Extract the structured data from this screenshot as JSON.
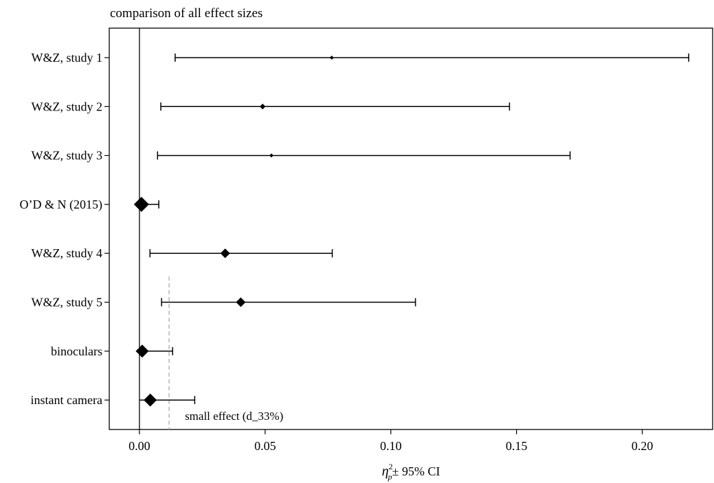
{
  "chart_data": {
    "type": "forest",
    "title": "comparison of all effect sizes",
    "xlabel": "± 95% CI",
    "xlabel_symbol": "η",
    "xlabel_sup": "2",
    "xlabel_sub": "p",
    "xlim": [
      -0.012,
      0.228
    ],
    "xticks": [
      0.0,
      0.05,
      0.1,
      0.15,
      0.2
    ],
    "xtick_labels": [
      "0.00",
      "0.05",
      "0.10",
      "0.15",
      "0.20"
    ],
    "zero_line": 0.0,
    "reference_line": {
      "value": 0.0118,
      "label": "small effect (d_33%)",
      "style": "dashed",
      "color": "#aaaaaa"
    },
    "series": [
      {
        "label": "W&Z, study 1",
        "estimate": 0.0765,
        "ci_low": 0.0142,
        "ci_high": 0.2185,
        "weight": 1
      },
      {
        "label": "W&Z, study 2",
        "estimate": 0.049,
        "ci_low": 0.0085,
        "ci_high": 0.1472,
        "weight": 2
      },
      {
        "label": "W&Z, study 3",
        "estimate": 0.0525,
        "ci_low": 0.0072,
        "ci_high": 0.1713,
        "weight": 1
      },
      {
        "label": "O’D & N (2015)",
        "estimate": 0.0008,
        "ci_low": 0.0,
        "ci_high": 0.0077,
        "weight": 5
      },
      {
        "label": "W&Z, study 4",
        "estimate": 0.0341,
        "ci_low": 0.0042,
        "ci_high": 0.0767,
        "weight": 3
      },
      {
        "label": "W&Z, study 5",
        "estimate": 0.0403,
        "ci_low": 0.0088,
        "ci_high": 0.1098,
        "weight": 3
      },
      {
        "label": "binoculars",
        "estimate": 0.0011,
        "ci_low": 0.0,
        "ci_high": 0.0132,
        "weight": 4
      },
      {
        "label": "instant camera",
        "estimate": 0.0043,
        "ci_low": 0.0,
        "ci_high": 0.022,
        "weight": 4
      }
    ],
    "grid": false,
    "legend": "none"
  }
}
